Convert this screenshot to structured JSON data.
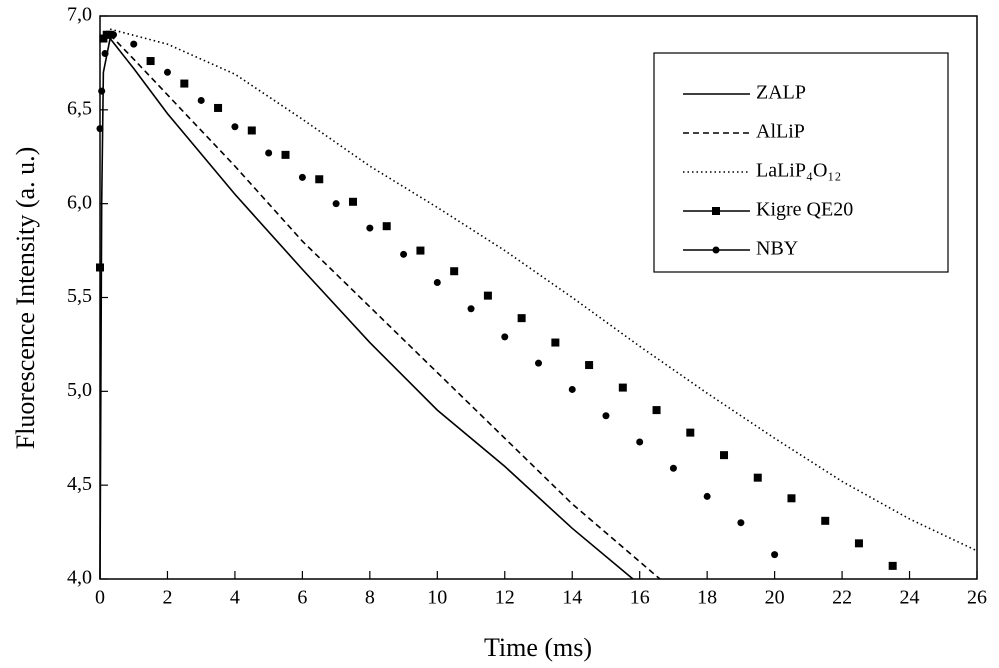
{
  "chart_data": {
    "type": "line",
    "x_label": "Time (ms)",
    "y_label": "Fluorescence  Intensity (a. u.)",
    "xlim": [
      0,
      26
    ],
    "ylim": [
      4,
      7
    ],
    "xticks": [
      0,
      2,
      4,
      6,
      8,
      10,
      12,
      14,
      16,
      18,
      20,
      22,
      24,
      26
    ],
    "yticks": [
      {
        "value": 4,
        "label": "4,0"
      },
      {
        "value": 4.5,
        "label": "4,5"
      },
      {
        "value": 5,
        "label": "5,0"
      },
      {
        "value": 5.5,
        "label": "5,5"
      },
      {
        "value": 6,
        "label": "6,0"
      },
      {
        "value": 6.5,
        "label": "6,5"
      },
      {
        "value": 7,
        "label": "7,0"
      }
    ],
    "legend": "upper right",
    "series": [
      {
        "name": "ZALP",
        "color": "#000000",
        "linestyle": "solid",
        "mode": "line",
        "x": [
          0,
          0.05,
          0.1,
          0.3,
          1,
          2,
          4,
          6,
          8,
          10,
          12,
          14,
          15.8
        ],
        "values": [
          4.0,
          6.0,
          6.7,
          6.88,
          6.72,
          6.48,
          6.05,
          5.65,
          5.26,
          4.9,
          4.6,
          4.27,
          4.0
        ]
      },
      {
        "name": "AlLiP",
        "color": "#000000",
        "linestyle": "dashed",
        "mode": "line",
        "x": [
          0.3,
          1,
          2,
          4,
          6,
          8,
          10,
          12,
          14,
          16.6
        ],
        "values": [
          6.9,
          6.77,
          6.58,
          6.2,
          5.8,
          5.45,
          5.1,
          4.75,
          4.4,
          4.0
        ]
      },
      {
        "name": "LaLiP₄O₁₂",
        "color": "#000000",
        "linestyle": "dotted",
        "mode": "line",
        "x": [
          0.3,
          2,
          4,
          6,
          8,
          10,
          12,
          14,
          16,
          18,
          20,
          22,
          24,
          26
        ],
        "values": [
          6.93,
          6.85,
          6.69,
          6.45,
          6.2,
          5.98,
          5.75,
          5.5,
          5.24,
          4.99,
          4.75,
          4.52,
          4.32,
          4.15
        ]
      },
      {
        "name": "Kigre QE20",
        "color": "#000000",
        "linestyle": "solid",
        "marker": "square",
        "mode": "markers",
        "x": [
          0,
          0.1,
          0.2,
          0.3,
          1.5,
          2.5,
          3.5,
          4.5,
          5.5,
          6.5,
          7.5,
          8.5,
          9.5,
          10.5,
          11.5,
          12.5,
          13.5,
          14.5,
          15.5,
          16.5,
          17.5,
          18.5,
          19.5,
          20.5,
          21.5,
          22.5,
          23.5
        ],
        "values": [
          5.66,
          6.88,
          6.9,
          6.9,
          6.76,
          6.64,
          6.51,
          6.39,
          6.26,
          6.13,
          6.01,
          5.88,
          5.75,
          5.64,
          5.51,
          5.39,
          5.26,
          5.14,
          5.02,
          4.9,
          4.78,
          4.66,
          4.54,
          4.43,
          4.31,
          4.19,
          4.07
        ]
      },
      {
        "name": "NBY",
        "color": "#000000",
        "linestyle": "solid",
        "marker": "circle",
        "mode": "markers",
        "x": [
          0,
          0.05,
          0.15,
          0.4,
          1,
          2,
          3,
          4,
          5,
          6,
          7,
          8,
          9,
          10,
          11,
          12,
          13,
          14,
          15,
          16,
          17,
          18,
          19,
          20
        ],
        "values": [
          6.4,
          6.6,
          6.8,
          6.9,
          6.85,
          6.7,
          6.55,
          6.41,
          6.27,
          6.14,
          6.0,
          5.87,
          5.73,
          5.58,
          5.44,
          5.29,
          5.15,
          5.01,
          4.87,
          4.73,
          4.59,
          4.44,
          4.3,
          4.13
        ]
      }
    ]
  }
}
